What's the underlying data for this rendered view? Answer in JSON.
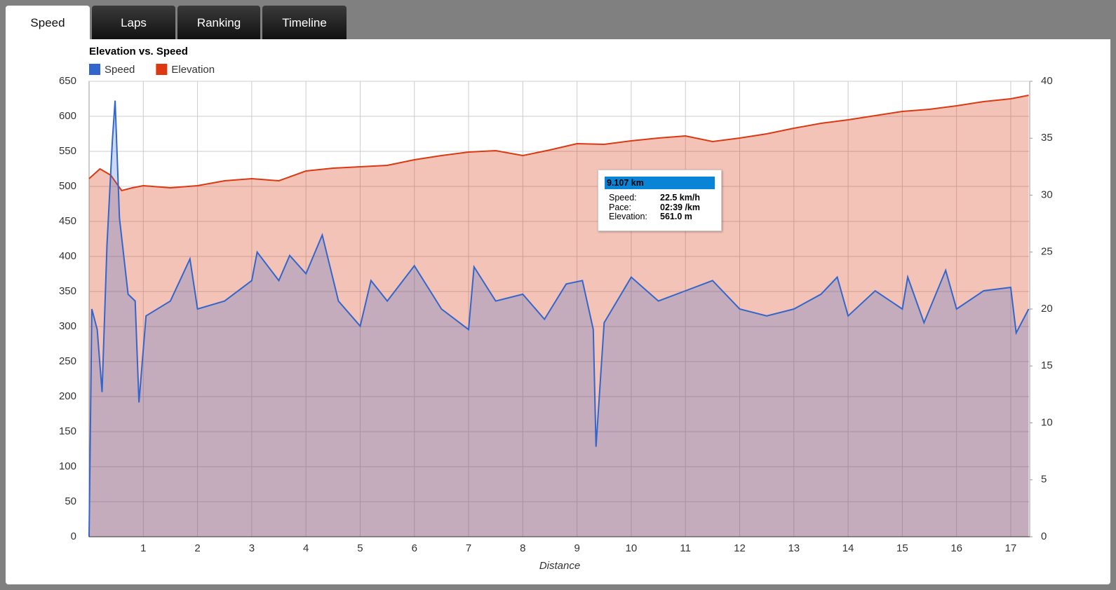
{
  "tabs": [
    "Speed",
    "Laps",
    "Ranking",
    "Timeline"
  ],
  "chart_data": {
    "type": "area",
    "title": "Elevation vs. Speed",
    "x_label": "Distance",
    "xlim": [
      0,
      17.35
    ],
    "xticks": [
      1,
      2,
      3,
      4,
      5,
      6,
      7,
      8,
      9,
      10,
      11,
      12,
      13,
      14,
      15,
      16,
      17
    ],
    "ylim": [
      0,
      650
    ],
    "yticks": [
      0,
      50,
      100,
      150,
      200,
      250,
      300,
      350,
      400,
      450,
      500,
      550,
      600,
      650
    ],
    "y2lim": [
      0,
      40
    ],
    "y2ticks": [
      0,
      5,
      10,
      15,
      20,
      25,
      30,
      35,
      40
    ],
    "grid": true,
    "legend": "top-left",
    "series": [
      {
        "name": "Elevation",
        "color": "#dc3912",
        "axis": "y",
        "x": [
          0,
          0.2,
          0.4,
          0.6,
          0.8,
          1,
          1.5,
          2,
          2.5,
          3,
          3.5,
          4,
          4.5,
          5,
          5.5,
          6,
          6.5,
          7,
          7.5,
          8,
          8.5,
          9,
          9.5,
          10,
          10.5,
          11,
          11.5,
          12,
          12.5,
          13,
          13.5,
          14,
          14.5,
          15,
          15.5,
          16,
          16.5,
          17,
          17.33
        ],
        "values": [
          511,
          525,
          516,
          494,
          498,
          501,
          498,
          501,
          508,
          511,
          508,
          522,
          526,
          528,
          530,
          538,
          544,
          549,
          551,
          544,
          552,
          561,
          560,
          565,
          569,
          572,
          564,
          569,
          575,
          583,
          590,
          595,
          601,
          607,
          610,
          615,
          621,
          625,
          630
        ]
      },
      {
        "name": "Speed",
        "color": "#3366cc",
        "axis": "y2",
        "x": [
          0,
          0.05,
          0.15,
          0.24,
          0.33,
          0.43,
          0.48,
          0.56,
          0.72,
          0.85,
          0.92,
          1.05,
          1.5,
          1.86,
          2,
          2.5,
          3,
          3.1,
          3.5,
          3.7,
          4,
          4.3,
          4.6,
          5,
          5.2,
          5.5,
          6,
          6.5,
          7,
          7.1,
          7.5,
          8,
          8.4,
          8.8,
          9.1,
          9.3,
          9.35,
          9.5,
          10,
          10.5,
          11,
          11.5,
          12,
          12.5,
          13,
          13.5,
          13.8,
          14,
          14.5,
          15,
          15.1,
          15.4,
          15.8,
          16,
          16.5,
          17,
          17.1,
          17.33
        ],
        "values": [
          0,
          20,
          18.2,
          12.7,
          25.6,
          34.8,
          38.3,
          28,
          21.3,
          20.7,
          11.8,
          19.4,
          20.7,
          24.4,
          20,
          20.7,
          22.5,
          25,
          22.5,
          24.7,
          23.1,
          26.5,
          20.7,
          18.5,
          22.5,
          20.7,
          23.8,
          20,
          18.2,
          23.7,
          20.7,
          21.3,
          19.1,
          22.2,
          22.5,
          18.2,
          7.9,
          18.8,
          22.8,
          20.7,
          21.6,
          22.5,
          20,
          19.4,
          20,
          21.3,
          22.8,
          19.4,
          21.6,
          20,
          22.8,
          18.8,
          23.4,
          20,
          21.6,
          21.9,
          17.9,
          20
        ]
      }
    ]
  },
  "tooltip": {
    "header": "9.107 km",
    "rows": [
      [
        "Speed:",
        "22.5 km/h"
      ],
      [
        "Pace:",
        "02:39 /km"
      ],
      [
        "Elevation:",
        "561.0 m"
      ]
    ]
  }
}
